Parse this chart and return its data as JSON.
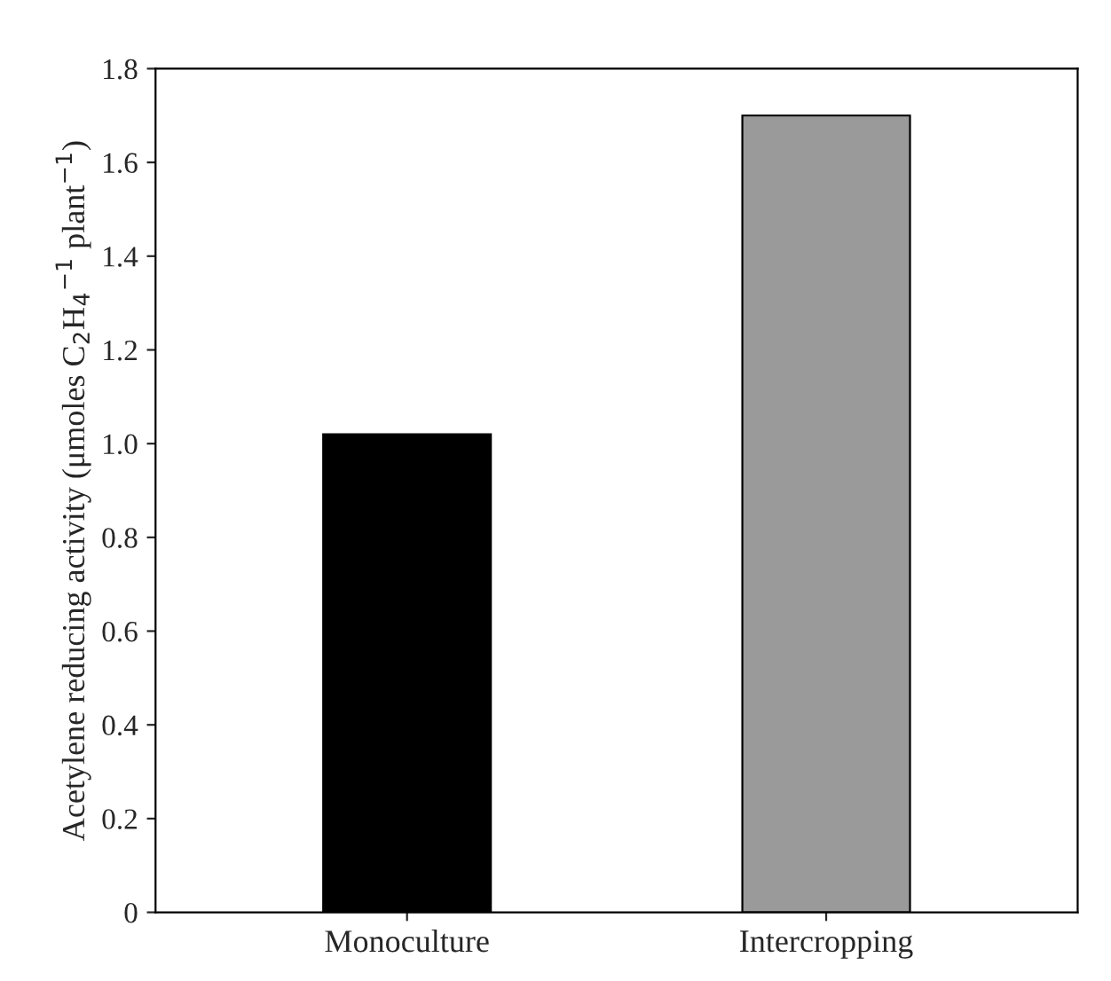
{
  "chart_data": {
    "type": "bar",
    "ylabel": "Acetylene reducing activity (μmoles C$_{2}$H$_{4}$$^{−1}$ plant$^{−1}$)",
    "categories": [
      "Monoculture",
      "Intercropping"
    ],
    "values": [
      1.02,
      1.7
    ],
    "colors": [
      "#000000",
      "#9a9a9a"
    ],
    "ylim": [
      0,
      1.8
    ],
    "yticks": [
      0,
      0.2,
      0.4,
      0.6,
      0.8,
      {
        "value": 1.0,
        "label": "1.0"
      },
      1.2,
      1.4,
      1.6,
      1.8
    ],
    "grid": false
  }
}
